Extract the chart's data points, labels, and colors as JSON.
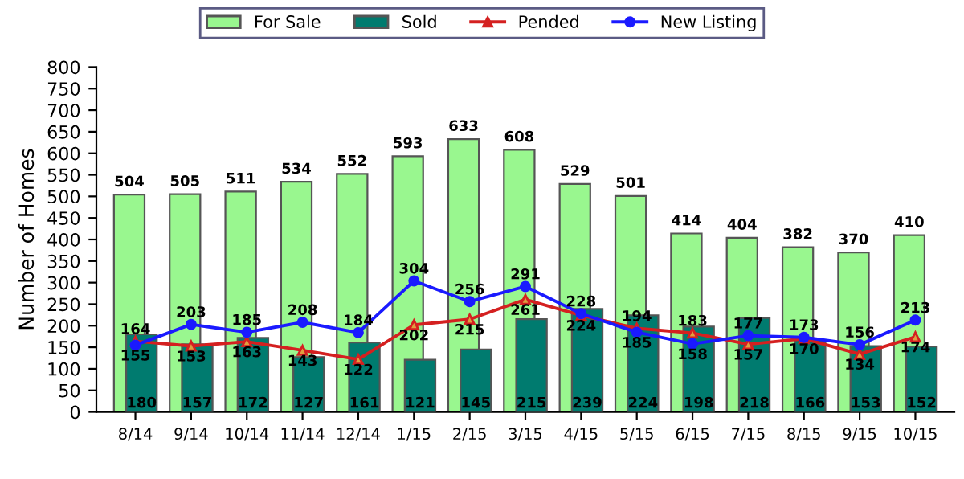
{
  "chart_data": {
    "type": "bar",
    "ylabel": "Number of Homes",
    "categories": [
      "8/14",
      "9/14",
      "10/14",
      "11/14",
      "12/14",
      "1/15",
      "2/15",
      "3/15",
      "4/15",
      "5/15",
      "6/15",
      "7/15",
      "8/15",
      "9/15",
      "10/15"
    ],
    "series": [
      {
        "name": "For Sale",
        "color": "#99f78f",
        "values": [
          504,
          505,
          511,
          534,
          552,
          593,
          633,
          608,
          529,
          501,
          414,
          404,
          382,
          370,
          410
        ]
      },
      {
        "name": "Sold",
        "color": "#007b6f",
        "values": [
          180,
          157,
          172,
          127,
          161,
          121,
          145,
          215,
          239,
          224,
          198,
          218,
          166,
          153,
          152
        ]
      },
      {
        "name": "Pended",
        "type": "line",
        "color": "#d42020",
        "marker": "triangle",
        "values": [
          164,
          153,
          163,
          143,
          122,
          202,
          215,
          261,
          224,
          194,
          183,
          157,
          170,
          134,
          174
        ]
      },
      {
        "name": "New Listing",
        "type": "line",
        "color": "#1a1aff",
        "marker": "circle",
        "values": [
          155,
          203,
          185,
          208,
          184,
          304,
          256,
          291,
          228,
          185,
          158,
          177,
          173,
          156,
          213
        ]
      }
    ],
    "ylim": [
      0,
      800
    ],
    "yticks": [
      0,
      50,
      100,
      150,
      200,
      250,
      300,
      350,
      400,
      450,
      500,
      550,
      600,
      650,
      700,
      750,
      800
    ],
    "data_labels": true,
    "legend": "top",
    "grid": false
  }
}
